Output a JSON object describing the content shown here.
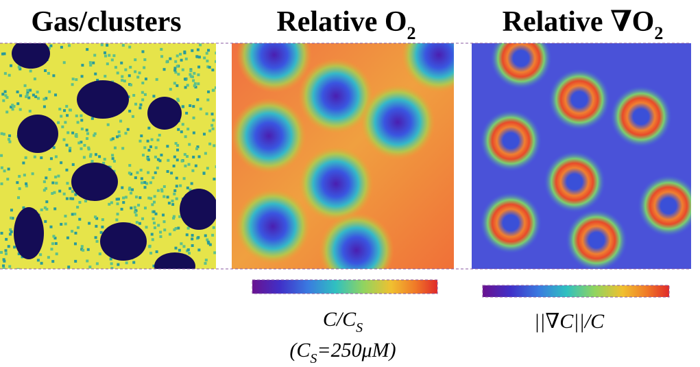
{
  "panels": [
    {
      "title": "Gas/clusters"
    },
    {
      "title": {
        "text": "Relative O",
        "sub": "2"
      },
      "colorbar_label": {
        "text": "C/C",
        "sub": "S"
      },
      "note": {
        "open": "(C",
        "sub": "S",
        "rest": "=250μM)"
      }
    },
    {
      "title": {
        "text": "Relative ∇O",
        "sub": "2"
      },
      "colorbar_label": {
        "text": "||∇C||/C"
      }
    }
  ]
}
